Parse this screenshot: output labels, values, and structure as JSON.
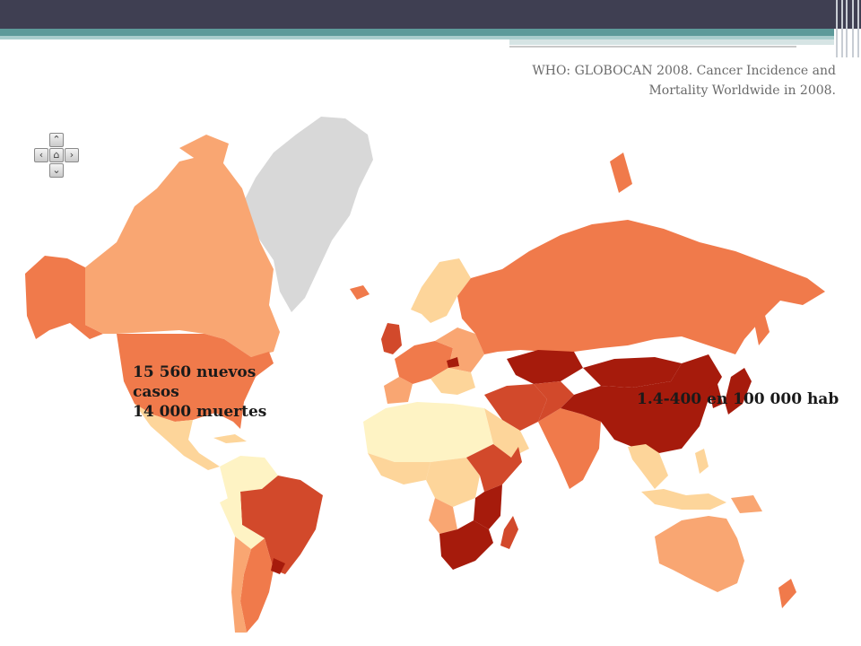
{
  "source": {
    "line1": "WHO: GLOBOCAN 2008. Cancer Incidence and",
    "line2": "Mortality Worldwide in 2008."
  },
  "nav_control": {
    "up_icon": "chevron-up-icon",
    "down_icon": "chevron-down-icon",
    "left_icon": "chevron-left-icon",
    "right_icon": "chevron-right-icon",
    "home_icon": "home-icon"
  },
  "annotations": {
    "usa": {
      "line1": "15 560 nuevos",
      "line2": "casos",
      "line3": "14 000 muertes"
    },
    "rate": "1.4-400 en 100 000 hab"
  },
  "colors": {
    "darkest": "#a61b0c",
    "dark": "#d2492b",
    "medium": "#f07a4b",
    "light": "#f9a672",
    "pale": "#fdd59a",
    "palest": "#fef3c4",
    "no_data": "#d8d8d8",
    "header": "#3f3f52",
    "accent": "#5d9a9a"
  }
}
